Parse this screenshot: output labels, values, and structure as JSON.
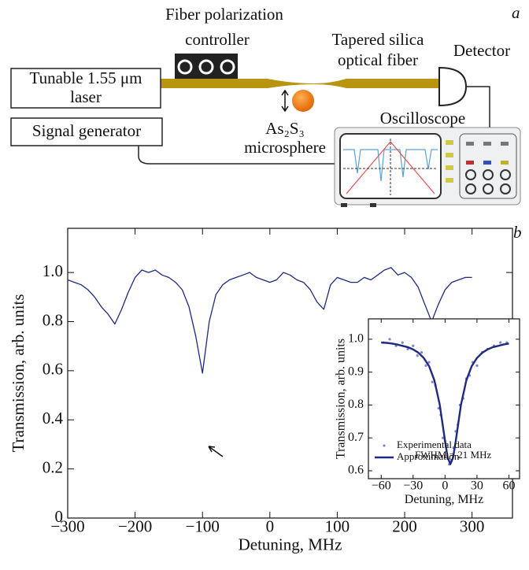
{
  "diagram": {
    "panel_label": "a",
    "controller_label": [
      "Fiber polarization",
      "controller"
    ],
    "fiber_label": [
      "Tapered silica",
      "optical fiber"
    ],
    "detector_label": "Detector",
    "laser_label": [
      "Tunable 1.55 μm",
      "laser"
    ],
    "generator_label": "Signal generator",
    "sphere_label": [
      "As₂S₃",
      "microsphere"
    ],
    "oscilloscope_label": "Oscilloscope"
  },
  "chart_data": [
    {
      "type": "line",
      "panel_label": "b",
      "xlabel": "Detuning, MHz",
      "ylabel": "Transmission, arb. units",
      "xlim": [
        -300,
        360
      ],
      "ylim": [
        0,
        1.18
      ],
      "xticks": [
        {
          "value": -300,
          "label": "−300"
        },
        {
          "value": -200,
          "label": "−200"
        },
        {
          "value": -100,
          "label": "−100"
        },
        0,
        100,
        200,
        300
      ],
      "yticks": [
        0,
        0.2,
        0.4,
        0.6,
        0.8,
        {
          "value": 1,
          "label": "1.0"
        }
      ],
      "x": [
        -300,
        -290,
        -280,
        -270,
        -260,
        -250,
        -240,
        -230,
        -220,
        -210,
        -200,
        -190,
        -180,
        -170,
        -160,
        -150,
        -140,
        -130,
        -120,
        -110,
        -100,
        -90,
        -80,
        -70,
        -60,
        -50,
        -40,
        -30,
        -20,
        -10,
        0,
        10,
        20,
        30,
        40,
        50,
        60,
        70,
        80,
        90,
        100,
        110,
        120,
        130,
        140,
        150,
        160,
        170,
        180,
        190,
        200,
        210,
        220,
        230,
        240,
        250,
        260,
        270,
        280,
        290,
        300
      ],
      "series": [
        {
          "color": "#1f2a80",
          "values": [
            0.97,
            0.96,
            0.95,
            0.93,
            0.9,
            0.86,
            0.83,
            0.79,
            0.85,
            0.92,
            0.98,
            1.01,
            1.0,
            1.01,
            0.99,
            0.98,
            0.96,
            0.93,
            0.86,
            0.74,
            0.59,
            0.8,
            0.91,
            0.95,
            0.97,
            0.98,
            0.99,
            1.0,
            0.98,
            0.97,
            0.96,
            0.97,
            1.0,
            0.99,
            0.97,
            0.96,
            0.93,
            0.88,
            0.85,
            0.95,
            0.98,
            0.97,
            0.96,
            0.96,
            0.98,
            0.97,
            0.99,
            1.01,
            1.02,
            0.99,
            1.0,
            0.98,
            0.94,
            0.87,
            0.8,
            0.87,
            0.93,
            0.96,
            0.97,
            0.98,
            0.98
          ]
        }
      ]
    },
    {
      "type": "line",
      "xlabel": "Detuning, MHz",
      "ylabel": "Transmission, arb. units",
      "xlim": [
        -72,
        70
      ],
      "ylim": [
        0.576,
        1.062
      ],
      "xticks": [
        {
          "value": -60,
          "label": "−60"
        },
        {
          "value": -30,
          "label": "−30"
        },
        0,
        30,
        60
      ],
      "yticks": [
        0.6,
        0.7,
        0.8,
        0.9,
        {
          "value": 1,
          "label": "1.0"
        }
      ],
      "annotation": "FWHM = 21 MHz",
      "series": [
        {
          "name": "Experimental data",
          "type": "scatter",
          "color": "#7b85d6",
          "x": [
            -58,
            -52,
            -46,
            -40,
            -35,
            -30,
            -26,
            -22,
            -18,
            -15,
            -12,
            -9,
            -6,
            -4,
            -2,
            0,
            2,
            4,
            6,
            8,
            10,
            12,
            14,
            17,
            20,
            23,
            26,
            30,
            35,
            40,
            46,
            52,
            58
          ],
          "values": [
            0.99,
            1.0,
            0.98,
            0.99,
            0.97,
            0.98,
            0.95,
            0.96,
            0.92,
            0.93,
            0.87,
            0.86,
            0.79,
            0.77,
            0.7,
            0.69,
            0.64,
            0.62,
            0.63,
            0.67,
            0.72,
            0.74,
            0.8,
            0.82,
            0.88,
            0.89,
            0.93,
            0.92,
            0.96,
            0.97,
            0.98,
            0.99,
            0.99
          ]
        },
        {
          "name": "Approximation",
          "type": "line",
          "color": "#1f2a80",
          "x": [
            -60,
            -55,
            -50,
            -45,
            -40,
            -35,
            -30,
            -25,
            -20,
            -15,
            -10,
            -5,
            0,
            2.5,
            5,
            7.5,
            10,
            15,
            20,
            25,
            30,
            35,
            40,
            45,
            50,
            55,
            60
          ],
          "values": [
            0.99,
            0.989,
            0.987,
            0.984,
            0.98,
            0.976,
            0.969,
            0.959,
            0.943,
            0.918,
            0.875,
            0.801,
            0.69,
            0.64,
            0.62,
            0.64,
            0.69,
            0.801,
            0.875,
            0.918,
            0.943,
            0.959,
            0.969,
            0.976,
            0.98,
            0.984,
            0.987
          ]
        }
      ]
    }
  ]
}
